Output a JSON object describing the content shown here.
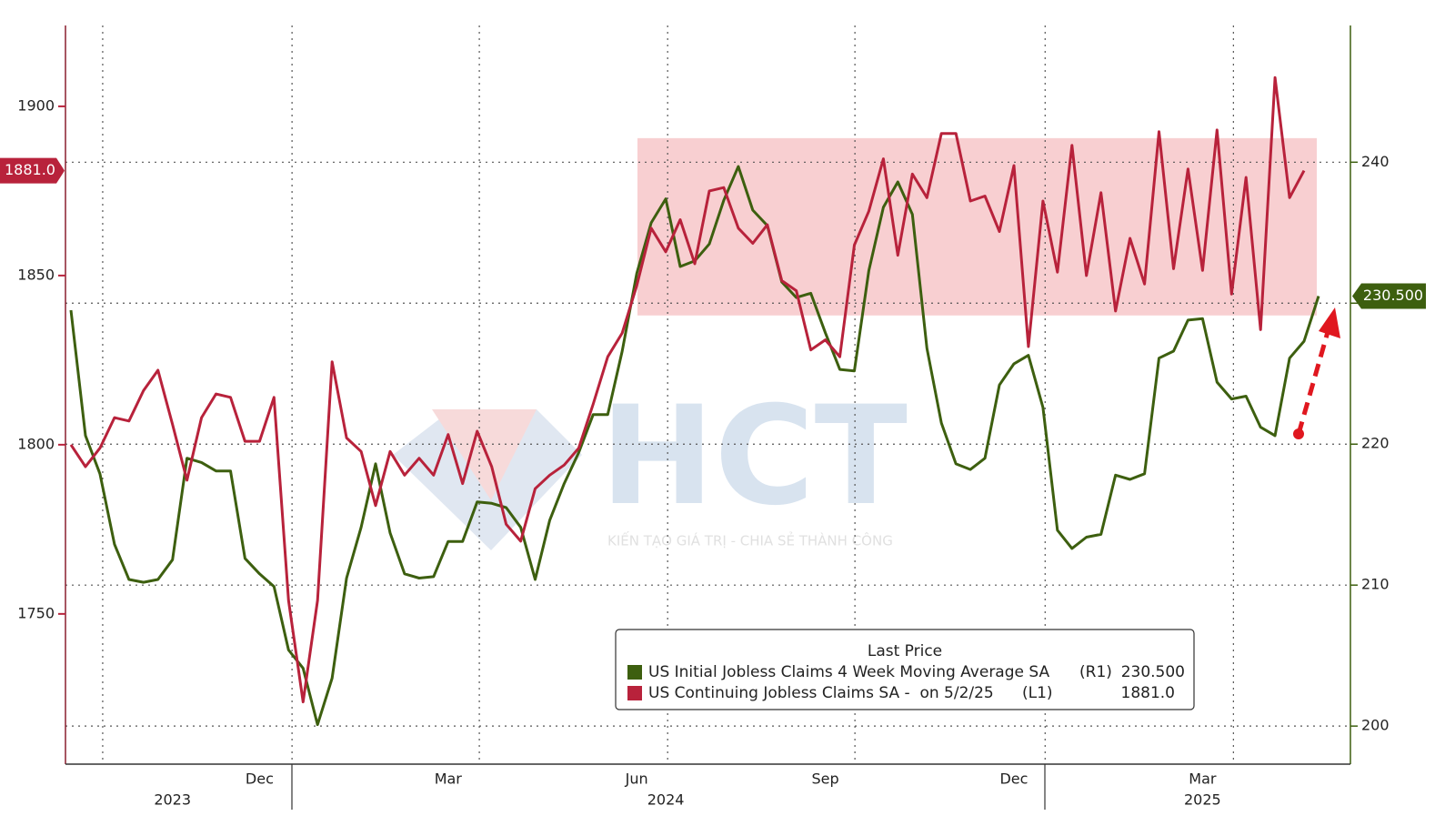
{
  "chart_data": {
    "type": "line",
    "categories": [
      null,
      null,
      null,
      null,
      null,
      null,
      null,
      null,
      null,
      null,
      null,
      null,
      null,
      "Dec",
      null,
      null,
      null,
      null,
      null,
      null,
      null,
      null,
      null,
      null,
      null,
      null,
      "Mar",
      null,
      null,
      null,
      null,
      null,
      null,
      null,
      null,
      null,
      null,
      null,
      null,
      "Jun",
      null,
      null,
      null,
      null,
      null,
      null,
      null,
      null,
      null,
      null,
      null,
      null,
      "Sep",
      null,
      null,
      null,
      null,
      null,
      null,
      null,
      null,
      null,
      null,
      null,
      null,
      "Dec",
      null,
      null,
      null,
      null,
      null,
      null,
      null,
      null,
      null,
      null,
      null,
      null,
      "Mar",
      null,
      null,
      null,
      null,
      null,
      null,
      null,
      null
    ],
    "categories_year": [
      null,
      null,
      null,
      null,
      null,
      null,
      null,
      "2023",
      null,
      null,
      null,
      null,
      null,
      null,
      null,
      null,
      null,
      null,
      null,
      null,
      null,
      null,
      null,
      null,
      null,
      null,
      null,
      null,
      null,
      null,
      null,
      null,
      null,
      null,
      null,
      null,
      null,
      null,
      null,
      null,
      null,
      "2024",
      null,
      null,
      null,
      null,
      null,
      null,
      null,
      null,
      null,
      null,
      null,
      null,
      null,
      null,
      null,
      null,
      null,
      null,
      null,
      null,
      null,
      null,
      null,
      null,
      null,
      null,
      null,
      null,
      null,
      null,
      null,
      null,
      null,
      null,
      null,
      null,
      "2025",
      null,
      null,
      null,
      null,
      null,
      null,
      null,
      null
    ],
    "series": [
      {
        "name": "US Initial Jobless Claims 4 Week Moving Average SA",
        "axis_tag": "(R1)",
        "last_label": "230.500",
        "color": "#3d5f0f",
        "axis": "y2",
        "values": [
          229.5,
          220.6,
          217.9,
          212.9,
          210.4,
          210.2,
          210.4,
          211.8,
          219.0,
          218.7,
          218.1,
          218.1,
          211.9,
          210.8,
          209.9,
          205.4,
          204.1,
          200.1,
          203.4,
          210.5,
          214.1,
          218.6,
          213.7,
          210.8,
          210.5,
          210.6,
          213.1,
          213.1,
          215.9,
          215.8,
          215.5,
          214.1,
          210.4,
          214.6,
          217.2,
          219.4,
          222.1,
          222.1,
          226.6,
          232.1,
          235.7,
          237.4,
          232.6,
          233.0,
          234.2,
          237.3,
          239.7,
          236.6,
          235.5,
          231.5,
          230.4,
          230.7,
          227.9,
          225.3,
          225.2,
          232.3,
          236.8,
          238.6,
          236.3,
          226.8,
          221.5,
          218.6,
          218.2,
          219.0,
          224.2,
          225.7,
          226.3,
          222.6,
          213.9,
          212.6,
          213.4,
          213.6,
          217.8,
          217.5,
          217.9,
          226.1,
          226.6,
          228.8,
          228.9,
          224.4,
          223.2,
          223.4,
          221.2,
          220.6,
          226.1,
          227.3,
          230.5
        ]
      },
      {
        "name": "US Continuing Jobless Claims SA -  on 5/2/25",
        "axis_tag": "(L1)",
        "last_label": "1881.0",
        "color": "#b8223b",
        "values": [
          1800,
          1793.5,
          1799,
          1808,
          1807,
          1816,
          1822,
          1806,
          1789.5,
          1808,
          1815,
          1814,
          1801,
          1801,
          1814,
          1754,
          1724,
          1754,
          1824.5,
          1802,
          1798,
          1782,
          1798,
          1791,
          1796,
          1791,
          1803,
          1788.5,
          1804,
          1793.5,
          1776.5,
          1771.5,
          1787,
          1791,
          1794,
          1799,
          1812,
          1826,
          1833,
          1847,
          1864,
          1857,
          1866.5,
          1853.5,
          1875,
          1876,
          1864,
          1859.5,
          1865,
          1848.5,
          1845.5,
          1828,
          1831,
          1826,
          1859,
          1869,
          1884.5,
          1856,
          1880,
          1873,
          1892,
          1892,
          1872,
          1873.5,
          1863,
          1882.5,
          1829,
          1872,
          1851,
          1888.5,
          1850,
          1874.5,
          1839.5,
          1861,
          1847.5,
          1892.5,
          1852,
          1881.5,
          1851.5,
          1893,
          1844.5,
          1879,
          1834,
          1908.5,
          1873,
          1881,
          null
        ]
      }
    ],
    "ylim": [
      1705.6,
      1923.9
    ],
    "yticks": [
      1750,
      1800,
      1850,
      1900
    ],
    "y2lim": [
      197.3,
      249.7
    ],
    "y2ticks": [
      200,
      210,
      220,
      230,
      240
    ],
    "grid": true,
    "legend_title": "Last Price",
    "shade": {
      "y_range": [
        1838.2,
        1890.6
      ],
      "color": "#f8cfd1"
    },
    "watermark": {
      "logo": "HCT",
      "slogan": "KIẾN TẠO GIÁ TRỊ - CHIA SẺ THÀNH CÔNG"
    }
  }
}
